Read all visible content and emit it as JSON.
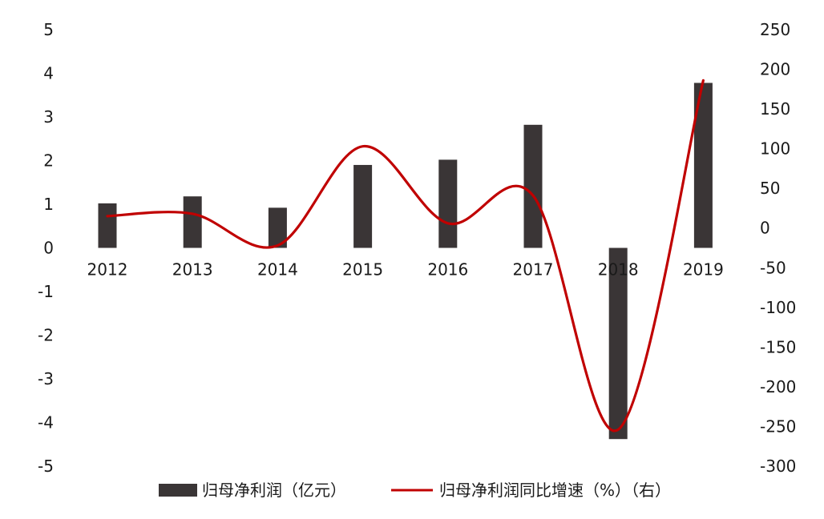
{
  "chart_data": {
    "type": "bar",
    "categories": [
      "2012",
      "2013",
      "2014",
      "2015",
      "2016",
      "2017",
      "2018",
      "2019"
    ],
    "series": [
      {
        "name": "归母净利润（亿元）",
        "type": "bar",
        "axis": "left",
        "color": "#3a3536",
        "values": [
          1.02,
          1.18,
          0.92,
          1.9,
          2.02,
          2.82,
          -4.38,
          3.78
        ]
      },
      {
        "name": "归母净利润同比增速（%）（右）",
        "type": "line",
        "axis": "right",
        "color": "#c00000",
        "values": [
          15,
          18,
          -22,
          103,
          6,
          41,
          -254,
          186
        ]
      }
    ],
    "y_left": {
      "ylim": [
        -5,
        5
      ],
      "ticks": [
        "5",
        "4",
        "3",
        "2",
        "1",
        "0",
        "-1",
        "-2",
        "-3",
        "-4",
        "-5"
      ]
    },
    "y_right": {
      "ylim": [
        -300,
        250
      ],
      "ticks": [
        "250",
        "200",
        "150",
        "100",
        "50",
        "0",
        "-50",
        "-100",
        "-150",
        "-200",
        "-250",
        "-300"
      ]
    },
    "title": "",
    "xlabel": "",
    "ylabel": "",
    "grid": false,
    "legend": "bottom"
  }
}
